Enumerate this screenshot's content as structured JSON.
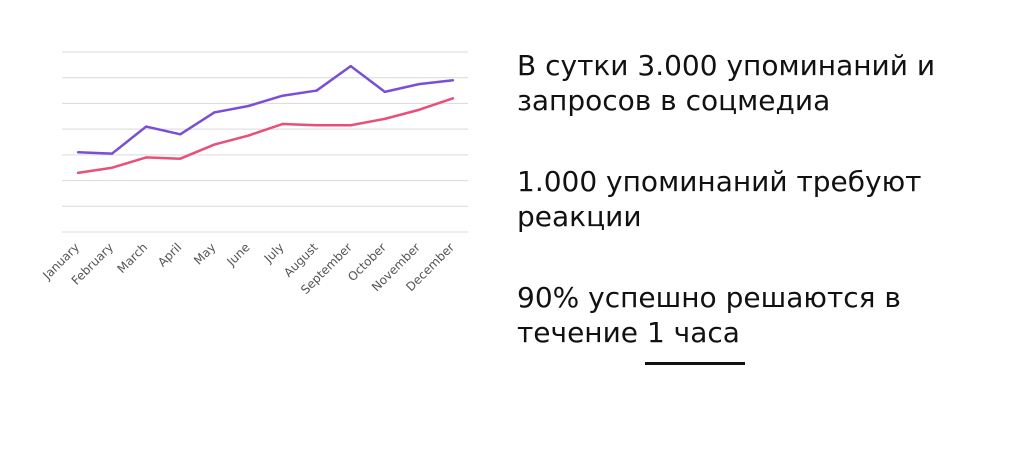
{
  "chart_data": {
    "type": "line",
    "categories": [
      "January",
      "February",
      "March",
      "April",
      "May",
      "June",
      "July",
      "August",
      "September",
      "October",
      "November",
      "December"
    ],
    "ylim": [
      0,
      7
    ],
    "grid": true,
    "series": [
      {
        "values": [
          3.1,
          3.05,
          4.1,
          3.8,
          4.65,
          4.9,
          5.3,
          5.5,
          6.45,
          5.45,
          5.75,
          5.9
        ],
        "color": "#7a4fd6"
      },
      {
        "values": [
          2.3,
          2.5,
          2.9,
          2.85,
          3.4,
          3.75,
          4.2,
          4.15,
          4.15,
          4.4,
          4.75,
          5.2
        ],
        "color": "#e8507a"
      }
    ],
    "gridline_color": "#d9d9d9",
    "tick_label_color": "#555555"
  },
  "facts": [
    {
      "text": "В сутки 3.000 упоминаний и запросов в соцмедиа"
    },
    {
      "text": "1.000 упоминаний требуют реакции"
    },
    {
      "prefix": "90% успешно решаются в течение ",
      "emphasis": "1 часа"
    }
  ],
  "colors": {
    "text": "#111111",
    "background": "#ffffff"
  }
}
